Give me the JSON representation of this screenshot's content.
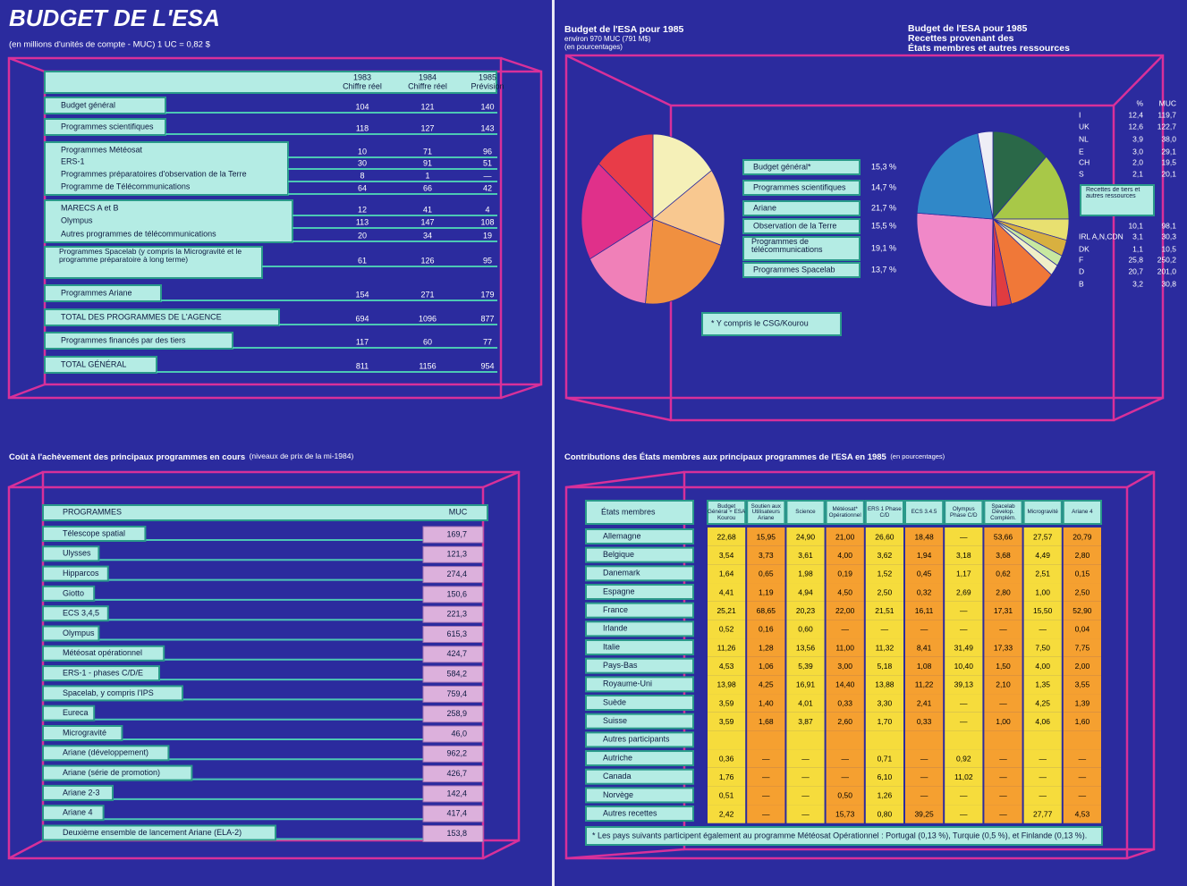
{
  "budget": {
    "title": "BUDGET DE L'ESA",
    "subtitle": "(en millions d'unités de compte - MUC) 1 UC = 0,82 $",
    "columns": [
      {
        "year": "1983",
        "label": "Chiffre réel"
      },
      {
        "year": "1984",
        "label": "Chiffre réel"
      },
      {
        "year": "1985",
        "label": "Prévision"
      }
    ],
    "groups": [
      [
        {
          "label": "Budget général",
          "values": [
            104,
            121,
            140
          ]
        }
      ],
      [
        {
          "label": "Programmes scientifiques",
          "values": [
            118,
            127,
            143
          ]
        }
      ],
      [
        {
          "label": "Programmes Météosat",
          "values": [
            10,
            71,
            96
          ]
        },
        {
          "label": "ERS-1",
          "values": [
            30,
            91,
            51
          ]
        },
        {
          "label": "Programmes préparatoires d'observation de la Terre",
          "values": [
            8,
            1,
            "—"
          ]
        },
        {
          "label": "Programme de Télécommunications",
          "values": [
            64,
            66,
            42
          ]
        }
      ],
      [
        {
          "label": "MARECS A et B",
          "values": [
            12,
            41,
            4
          ]
        },
        {
          "label": "Olympus",
          "values": [
            113,
            147,
            108
          ]
        },
        {
          "label": "Autres programmes de télécommunications",
          "values": [
            20,
            34,
            19
          ]
        }
      ],
      [
        {
          "label": "Programmes Spacelab (y compris la Microgravité et le programme préparatoire à long terme)",
          "values": [
            61,
            126,
            95
          ]
        }
      ],
      [
        {
          "label": "Programmes Ariane",
          "values": [
            154,
            271,
            179
          ]
        }
      ],
      [
        {
          "label": "TOTAL DES PROGRAMMES DE L'AGENCE",
          "values": [
            694,
            1096,
            877
          ]
        }
      ],
      [
        {
          "label": "Programmes financés par des tiers",
          "values": [
            117,
            60,
            77
          ]
        }
      ],
      [
        {
          "label": "TOTAL GÉNÉRAL",
          "values": [
            811,
            1156,
            954
          ]
        }
      ]
    ]
  },
  "chart_data": [
    {
      "type": "pie",
      "title": "Budget de l'ESA pour 1985",
      "subtitle": "environ 970 MUC (791 M$)",
      "note": "(en pourcentages)",
      "categories": [
        "Budget général*",
        "Programmes scientifiques",
        "Ariane",
        "Observation de la Terre",
        "Programmes de télécommunications",
        "Programmes Spacelab"
      ],
      "values": [
        15.3,
        14.7,
        21.7,
        15.5,
        19.1,
        13.7
      ],
      "value_labels": [
        "15,3 %",
        "14,7 %",
        "21,7 %",
        "15,5 %",
        "19,1 %",
        "13,7 %"
      ],
      "colors": [
        "#f5f0b8",
        "#f8c890",
        "#f09040",
        "#f080b8",
        "#e0308a",
        "#e83c48"
      ],
      "footnote": "* Y compris le CSG/Kourou"
    },
    {
      "type": "pie",
      "title": "Budget de l'ESA pour 1985",
      "subtitle": "Recettes provenant des",
      "note": "États membres et autres ressources",
      "column_headers": [
        "%",
        "MUC"
      ],
      "categories": [
        "I",
        "UK",
        "NL",
        "E",
        "CH",
        "S",
        "Recettes de tiers et autres ressources",
        "IRL A,N,CDN",
        "DK",
        "F",
        "D",
        "B"
      ],
      "values": [
        12.4,
        12.6,
        3.9,
        3.0,
        2.0,
        2.1,
        10.1,
        3.1,
        1.1,
        25.8,
        20.7,
        3.2
      ],
      "value_labels": [
        "12,4",
        "12,6",
        "3,9",
        "3,0",
        "2,0",
        "2,1",
        "10,1",
        "3,1",
        "1,1",
        "25,8",
        "20,7",
        "3,2"
      ],
      "muc": [
        "119,7",
        "122,7",
        "38,0",
        "29,1",
        "19,5",
        "20,1",
        "98,1",
        "30,3",
        "10,5",
        "250,2",
        "201,0",
        "30,8"
      ],
      "colors": [
        "#2a6848",
        "#a8c848",
        "#e8e070",
        "#d8b040",
        "#c8e8a0",
        "#f0f0c8",
        "#f07838",
        "#e03c40",
        "#9850c8",
        "#f088c8",
        "#3088c8",
        "#eeeef6"
      ]
    }
  ],
  "costs": {
    "title": "Coût à l'achèvement des principaux programmes en cours",
    "subtitle": "(niveaux de prix de la mi-1984)",
    "headers": [
      "PROGRAMMES",
      "MUC"
    ],
    "rows": [
      {
        "label": "Télescope spatial",
        "muc": "169,7"
      },
      {
        "label": "Ulysses",
        "muc": "121,3"
      },
      {
        "label": "Hipparcos",
        "muc": "274,4"
      },
      {
        "label": "Giotto",
        "muc": "150,6"
      },
      {
        "label": "ECS 3,4,5",
        "muc": "221,3"
      },
      {
        "label": "Olympus",
        "muc": "615,3"
      },
      {
        "label": "Météosat opérationnel",
        "muc": "424,7"
      },
      {
        "label": "ERS-1 - phases C/D/E",
        "muc": "584,2"
      },
      {
        "label": "Spacelab, y compris l'IPS",
        "muc": "759,4"
      },
      {
        "label": "Eureca",
        "muc": "258,9"
      },
      {
        "label": "Microgravité",
        "muc": "46,0"
      },
      {
        "label": "Ariane (développement)",
        "muc": "962,2"
      },
      {
        "label": "Ariane (série de promotion)",
        "muc": "426,7"
      },
      {
        "label": "Ariane 2-3",
        "muc": "142,4"
      },
      {
        "label": "Ariane 4",
        "muc": "417,4"
      },
      {
        "label": "Deuxième ensemble de lancement Ariane (ELA-2)",
        "muc": "153,8"
      }
    ]
  },
  "contributions": {
    "title": "Contributions des États membres aux principaux programmes de l'ESA en 1985",
    "subtitle": "(en pourcentages)",
    "row_header": "États membres",
    "columns": [
      "Budget Général + ESA Kourou",
      "Soutien aux Utilisateurs Ariane",
      "Science",
      "Météosat* Opérationnel",
      "ERS 1 Phase C/D",
      "ECS 3.4.5",
      "Olympus Phase C/D",
      "Spacelab Dévelop. Complém.",
      "Microgravité",
      "Ariane 4"
    ],
    "rows": [
      {
        "label": "Allemagne",
        "values": [
          "22,68",
          "15,95",
          "24,90",
          "21,00",
          "26,60",
          "18,48",
          "—",
          "53,66",
          "27,57",
          "20,79"
        ]
      },
      {
        "label": "Belgique",
        "values": [
          "3,54",
          "3,73",
          "3,61",
          "4,00",
          "3,62",
          "1,94",
          "3,18",
          "3,68",
          "4,49",
          "2,80"
        ]
      },
      {
        "label": "Danemark",
        "values": [
          "1,64",
          "0,65",
          "1,98",
          "0,19",
          "1,52",
          "0,45",
          "1,17",
          "0,62",
          "2,51",
          "0,15"
        ]
      },
      {
        "label": "Espagne",
        "values": [
          "4,41",
          "1,19",
          "4,94",
          "4,50",
          "2,50",
          "0,32",
          "2,69",
          "2,80",
          "1,00",
          "2,50"
        ]
      },
      {
        "label": "France",
        "values": [
          "25,21",
          "68,65",
          "20,23",
          "22,00",
          "21,51",
          "16,11",
          "—",
          "17,31",
          "15,50",
          "52,90"
        ]
      },
      {
        "label": "Irlande",
        "values": [
          "0,52",
          "0,16",
          "0,60",
          "—",
          "—",
          "—",
          "—",
          "—",
          "—",
          "0,04"
        ]
      },
      {
        "label": "Italie",
        "values": [
          "11,26",
          "1,28",
          "13,56",
          "11,00",
          "11,32",
          "8,41",
          "31,49",
          "17,33",
          "7,50",
          "7,75"
        ]
      },
      {
        "label": "Pays-Bas",
        "values": [
          "4,53",
          "1,06",
          "5,39",
          "3,00",
          "5,18",
          "1,08",
          "10,40",
          "1,50",
          "4,00",
          "2,00"
        ]
      },
      {
        "label": "Royaume-Uni",
        "values": [
          "13,98",
          "4,25",
          "16,91",
          "14,40",
          "13,88",
          "11,22",
          "39,13",
          "2,10",
          "1,35",
          "3,55"
        ]
      },
      {
        "label": "Suède",
        "values": [
          "3,59",
          "1,40",
          "4,01",
          "0,33",
          "3,30",
          "2,41",
          "—",
          "—",
          "4,25",
          "1,39"
        ]
      },
      {
        "label": "Suisse",
        "values": [
          "3,59",
          "1,68",
          "3,87",
          "2,60",
          "1,70",
          "0,33",
          "—",
          "1,00",
          "4,06",
          "1,60"
        ]
      },
      {
        "label": "Autres participants",
        "values": []
      },
      {
        "label": "Autriche",
        "values": [
          "0,36",
          "—",
          "—",
          "—",
          "0,71",
          "—",
          "0,92",
          "—",
          "—",
          "—"
        ]
      },
      {
        "label": "Canada",
        "values": [
          "1,76",
          "—",
          "—",
          "—",
          "6,10",
          "—",
          "11,02",
          "—",
          "—",
          "—"
        ]
      },
      {
        "label": "Norvège",
        "values": [
          "0,51",
          "—",
          "—",
          "0,50",
          "1,26",
          "—",
          "—",
          "—",
          "—",
          "—"
        ]
      },
      {
        "label": "Autres recettes",
        "values": [
          "2,42",
          "—",
          "—",
          "15,73",
          "0,80",
          "39,25",
          "—",
          "—",
          "27,77",
          "4,53"
        ]
      }
    ],
    "footnote": "* Les pays suivants participent également au programme Météosat Opérationnel : Portugal (0,13 %), Turquie (0,5 %), et Finlande (0,13 %)."
  }
}
